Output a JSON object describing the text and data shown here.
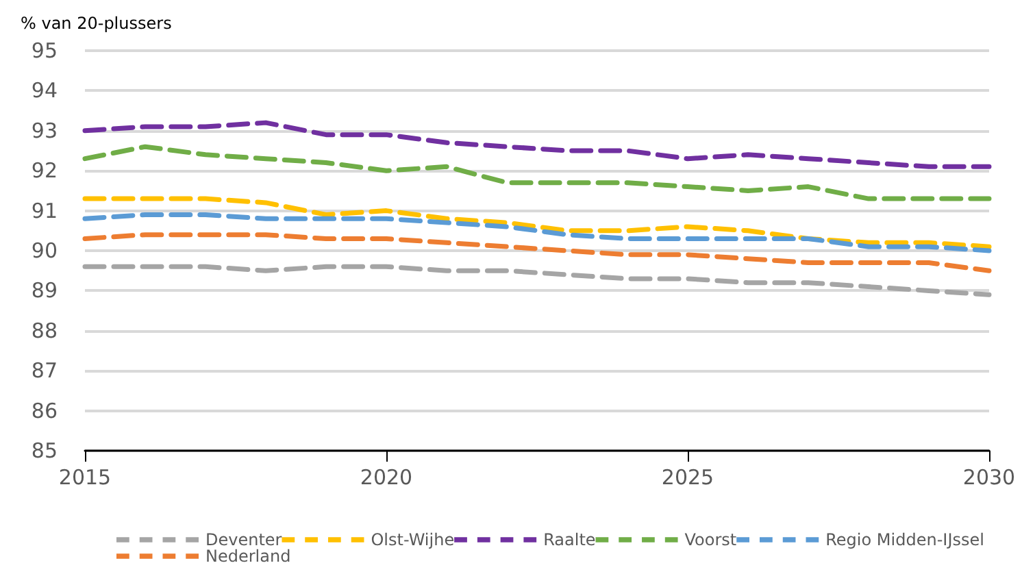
{
  "chart_data": {
    "type": "line",
    "ylabel": "% van 20-plussers",
    "x": [
      2015,
      2016,
      2017,
      2018,
      2019,
      2020,
      2021,
      2022,
      2023,
      2024,
      2025,
      2026,
      2027,
      2028,
      2029,
      2030
    ],
    "series": [
      {
        "name": "Deventer",
        "color": "#a5a5a5",
        "values": [
          89.6,
          89.6,
          89.6,
          89.5,
          89.6,
          89.6,
          89.5,
          89.5,
          89.4,
          89.3,
          89.3,
          89.2,
          89.2,
          89.1,
          89.0,
          88.9
        ]
      },
      {
        "name": "Olst-Wijhe",
        "color": "#ffc000",
        "values": [
          91.3,
          91.3,
          91.3,
          91.2,
          90.9,
          91.0,
          90.8,
          90.7,
          90.5,
          90.5,
          90.6,
          90.5,
          90.3,
          90.2,
          90.2,
          90.1
        ]
      },
      {
        "name": "Raalte",
        "color": "#7030a0",
        "values": [
          93.0,
          93.1,
          93.1,
          93.2,
          92.9,
          92.9,
          92.7,
          92.6,
          92.5,
          92.5,
          92.3,
          92.4,
          92.3,
          92.2,
          92.1,
          92.1
        ]
      },
      {
        "name": "Voorst",
        "color": "#70ad47",
        "values": [
          92.3,
          92.6,
          92.4,
          92.3,
          92.2,
          92.0,
          92.1,
          91.7,
          91.7,
          91.7,
          91.6,
          91.5,
          91.6,
          91.3,
          91.3,
          91.3
        ]
      },
      {
        "name": "Regio Midden-IJssel",
        "color": "#5b9bd5",
        "values": [
          90.8,
          90.9,
          90.9,
          90.8,
          90.8,
          90.8,
          90.7,
          90.6,
          90.4,
          90.3,
          90.3,
          90.3,
          90.3,
          90.1,
          90.1,
          90.0
        ]
      },
      {
        "name": "Nederland",
        "color": "#ed7d31",
        "values": [
          90.3,
          90.4,
          90.4,
          90.4,
          90.3,
          90.3,
          90.2,
          90.1,
          90.0,
          89.9,
          89.9,
          89.8,
          89.7,
          89.7,
          89.7,
          89.5
        ]
      }
    ],
    "xlim": [
      2015,
      2030
    ],
    "xticks": [
      2015,
      2020,
      2025,
      2030
    ],
    "ylim": [
      85,
      95
    ],
    "yticks": [
      85,
      86,
      87,
      88,
      89,
      90,
      91,
      92,
      93,
      94,
      95
    ],
    "grid": "y",
    "legend": "bottom",
    "marker": "none",
    "line_style": "dashed"
  }
}
